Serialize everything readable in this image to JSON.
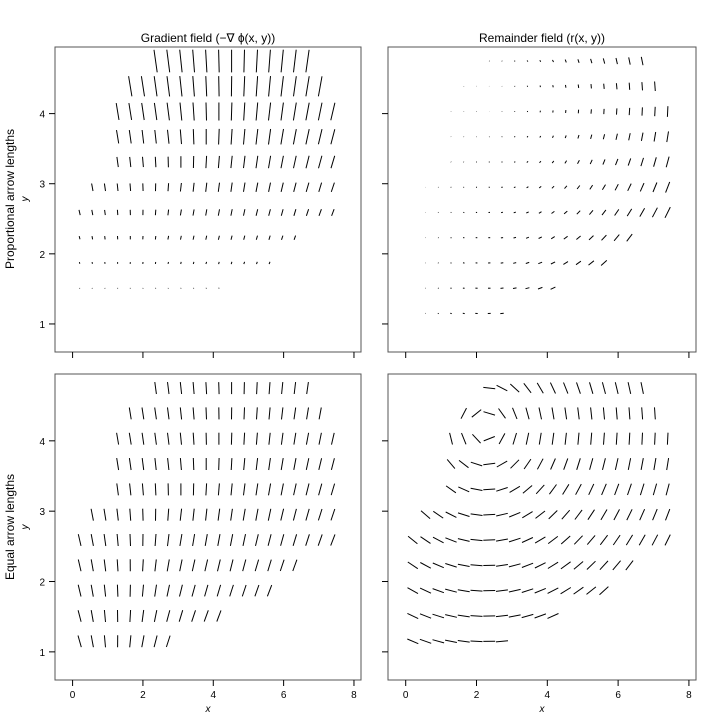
{
  "chart_data": {
    "type": "vector-field",
    "panel_titles": [
      "Gradient field (−∇ ϕ(x, y))",
      "Remainder field (r(x, y))"
    ],
    "row_labels": [
      "Proportional arrow lengths",
      "Equal arrow lengths"
    ],
    "xlabel": "x",
    "ylabel": "y",
    "xlim": [
      -0.5,
      8.2
    ],
    "ylim": [
      0.6,
      4.95
    ],
    "x_ticks": [
      "0",
      "2",
      "4",
      "6",
      "8"
    ],
    "y_ticks": [
      "1",
      "2",
      "3",
      "4"
    ],
    "grid_spacing": 0.36,
    "gradient_center": [
      3.0,
      3.3
    ],
    "remainder_center": [
      3.4,
      2.9
    ],
    "domain_note": "vectors sampled on a regular grid over the filled region of the data",
    "colors": {
      "arrow": "#000000",
      "frame": "#555555"
    },
    "grid": false,
    "legend": "none"
  }
}
